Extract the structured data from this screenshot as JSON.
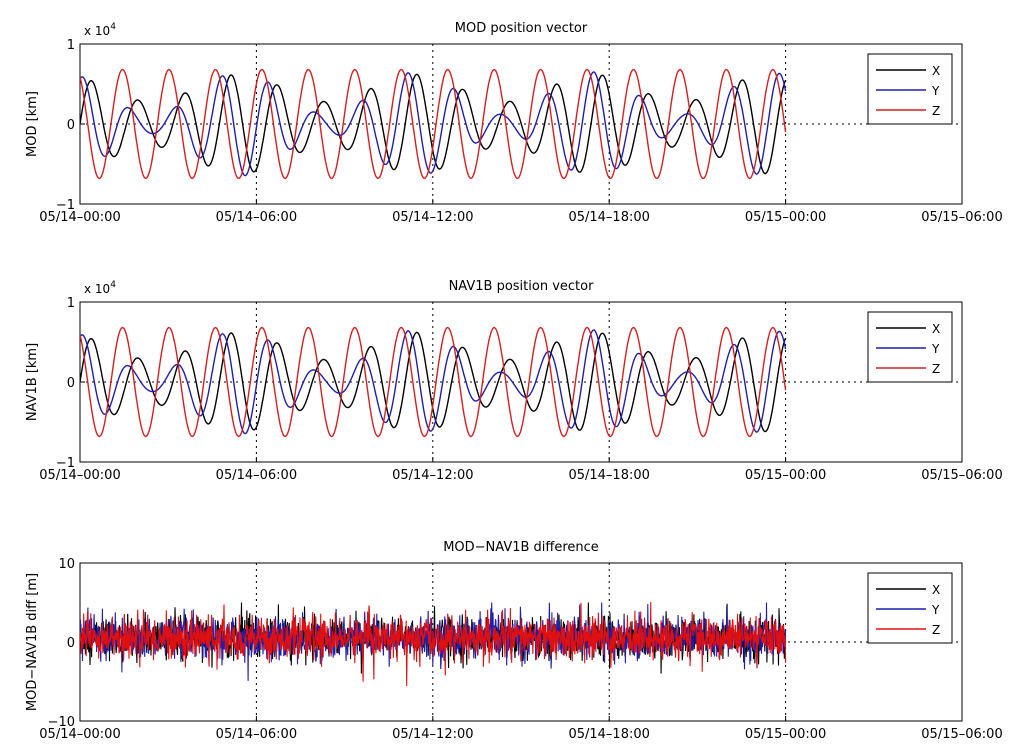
{
  "chart_data": [
    {
      "type": "line",
      "title": "MOD position vector",
      "ylabel": "MOD [km]",
      "xlabel": "",
      "y_multiplier": "x 10^4",
      "x_ticks": [
        "05/14-00:00",
        "05/14-06:00",
        "05/14-12:00",
        "05/14-18:00",
        "05/15-00:00",
        "05/15-06:00"
      ],
      "x_range_hours": [
        0,
        30
      ],
      "ylim": [
        -1,
        1
      ],
      "y_ticks": [
        "-1",
        "0",
        "1"
      ],
      "grid": "dotted",
      "legend": "top-right",
      "series": [
        {
          "name": "X",
          "color": "#000000",
          "amplitude": 0.62,
          "period_hours": 1.58,
          "phase": 0.0,
          "note": "oscillation with amplitude varying ~0.25 to 0.65, data from 05/14-00:00 to 05/15-00:00"
        },
        {
          "name": "Y",
          "color": "#1f1faa",
          "amplitude": 0.62,
          "period_hours": 1.58,
          "phase": 1.2,
          "note": "oscillation whose amplitude swings between ~0.1 and ~0.65"
        },
        {
          "name": "Z",
          "color": "#d42020",
          "amplitude": 0.68,
          "period_hours": 1.58,
          "phase": 2.1,
          "note": "steady oscillation ~±0.68"
        }
      ]
    },
    {
      "type": "line",
      "title": "NAV1B position vector",
      "ylabel": "NAV1B [km]",
      "xlabel": "",
      "y_multiplier": "x 10^4",
      "x_ticks": [
        "05/14-00:00",
        "05/14-06:00",
        "05/14-12:00",
        "05/14-18:00",
        "05/15-00:00",
        "05/15-06:00"
      ],
      "x_range_hours": [
        0,
        30
      ],
      "ylim": [
        -1,
        1
      ],
      "y_ticks": [
        "-1",
        "0",
        "1"
      ],
      "grid": "dotted",
      "legend": "top-right",
      "series": [
        {
          "name": "X",
          "color": "#000000",
          "amplitude": 0.62,
          "period_hours": 1.58,
          "phase": 0.0
        },
        {
          "name": "Y",
          "color": "#1f1faa",
          "amplitude": 0.62,
          "period_hours": 1.58,
          "phase": 1.2
        },
        {
          "name": "Z",
          "color": "#d42020",
          "amplitude": 0.68,
          "period_hours": 1.58,
          "phase": 2.1
        }
      ]
    },
    {
      "type": "line",
      "title": "MOD−NAV1B difference",
      "ylabel": "MOD−NAV1B diff [m]",
      "xlabel": "",
      "x_ticks": [
        "05/14-00:00",
        "05/14-06:00",
        "05/14-12:00",
        "05/14-18:00",
        "05/15-00:00",
        "05/15-06:00"
      ],
      "x_range_hours": [
        0,
        30
      ],
      "ylim": [
        -10,
        10
      ],
      "y_ticks": [
        "-10",
        "0",
        "10"
      ],
      "grid": "dotted",
      "legend": "top-right",
      "series": [
        {
          "name": "X",
          "color": "#000000",
          "noise_range": [
            -4,
            5
          ]
        },
        {
          "name": "Y",
          "color": "#1f1faa",
          "noise_range": [
            -5,
            5
          ]
        },
        {
          "name": "Z",
          "color": "#e01010",
          "noise_range": [
            -7,
            6
          ]
        }
      ]
    }
  ]
}
